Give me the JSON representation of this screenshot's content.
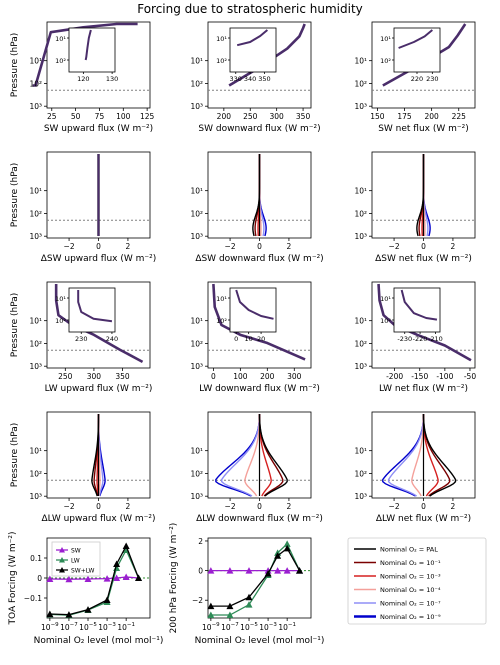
{
  "title": "Forcing due to stratospheric humidity",
  "colors": {
    "line_colors": [
      "#000000",
      "#7a0000",
      "#d62020",
      "#f4a09a",
      "#8f8ff5",
      "#0000cc"
    ],
    "blend": "#4a2d6a",
    "sw": "#9b1fd0",
    "lw": "#2e8b57",
    "swlw": "#000000",
    "refline": "#808080"
  },
  "legend": {
    "entries": [
      "Nominal O₂ = PAL",
      "Nominal O₂ = 10⁻¹",
      "Nominal O₂ = 10⁻³",
      "Nominal O₂ = 10⁻⁴",
      "Nominal O₂ = 10⁻⁷",
      "Nominal O₂ = 10⁻⁹"
    ]
  },
  "chart_data": [
    {
      "id": "sw_up",
      "type": "line",
      "xlabel": "SW upward flux (W m⁻²)",
      "ylabel": "Pressure (hPa)",
      "xlim": [
        20,
        128
      ],
      "xticks": [
        25,
        50,
        75,
        100,
        125
      ],
      "ylim": [
        1200,
        0.2
      ],
      "yscale": "log",
      "refline_y": 200,
      "profile": [
        [
          5,
          0.25
        ],
        [
          8,
          0.25
        ],
        [
          24,
          0.9
        ],
        [
          58,
          0.96
        ],
        [
          93,
          1.0
        ],
        [
          115,
          1.0
        ]
      ],
      "inset": {
        "xlim": [
          115,
          131
        ],
        "xticks": [
          120,
          130
        ],
        "yticks": [
          "10¹",
          "10²"
        ],
        "ylim": [
          200,
          0.2
        ],
        "profile": [
          [
            120.8,
            0.25
          ],
          [
            121,
            0.32
          ],
          [
            121.4,
            0.55
          ],
          [
            121.9,
            0.8
          ],
          [
            122.6,
            1.0
          ]
        ]
      }
    },
    {
      "id": "sw_down",
      "type": "line",
      "xlabel": "SW downward flux (W m⁻²)",
      "ylabel": "",
      "xlim": [
        170,
        365
      ],
      "xticks": [
        200,
        250,
        300,
        350
      ],
      "ylim": [
        1200,
        0.2
      ],
      "yscale": "log",
      "refline_y": 200,
      "profile": [
        [
          210,
          0.25
        ],
        [
          262,
          0.45
        ],
        [
          320,
          0.7
        ],
        [
          343,
          0.85
        ],
        [
          350,
          0.95
        ],
        [
          353,
          1.0
        ]
      ],
      "inset": {
        "xlim": [
          326,
          358
        ],
        "xticks": [
          330,
          340,
          350
        ],
        "yticks": [
          "10¹",
          "10²"
        ],
        "ylim": [
          200,
          0.2
        ],
        "profile": [
          [
            331,
            0.62
          ],
          [
            340,
            0.7
          ],
          [
            347,
            0.85
          ],
          [
            352,
            1.0
          ]
        ]
      }
    },
    {
      "id": "sw_net",
      "type": "line",
      "xlabel": "SW net flux (W m⁻²)",
      "ylabel": "",
      "xlim": [
        145,
        240
      ],
      "xticks": [
        150,
        175,
        200,
        225
      ],
      "ylim": [
        1200,
        0.2
      ],
      "yscale": "log",
      "refline_y": 200,
      "profile": [
        [
          155,
          0.25
        ],
        [
          182,
          0.45
        ],
        [
          201,
          0.6
        ],
        [
          216,
          0.72
        ],
        [
          224,
          0.86
        ],
        [
          231,
          1.0
        ]
      ],
      "inset": {
        "xlim": [
          205,
          235
        ],
        "xticks": [
          220,
          230
        ],
        "yticks": [
          "10¹",
          "10²"
        ],
        "ylim": [
          200,
          0.2
        ],
        "profile": [
          [
            208,
            0.55
          ],
          [
            218,
            0.7
          ],
          [
            225,
            0.84
          ],
          [
            230,
            1.0
          ]
        ]
      }
    },
    {
      "id": "dsw_up",
      "type": "line",
      "xlabel": "ΔSW upward flux (W m⁻²)",
      "ylabel": "Pressure (hPa)",
      "xlim": [
        -3.5,
        3.5
      ],
      "xticks": [
        -2,
        0,
        2
      ],
      "ylim": [
        1200,
        0.2
      ],
      "yscale": "log",
      "refline_y": 200
    },
    {
      "id": "dsw_down",
      "type": "line",
      "xlabel": "ΔSW downward flux (W m⁻²)",
      "ylabel": "",
      "xlim": [
        -3.5,
        3.5
      ],
      "xticks": [
        -2,
        0,
        2
      ],
      "ylim": [
        1200,
        0.2
      ],
      "yscale": "log",
      "refline_y": 200
    },
    {
      "id": "dsw_net",
      "type": "line",
      "xlabel": "ΔSW net flux (W m⁻²)",
      "ylabel": "",
      "xlim": [
        -3.5,
        3.5
      ],
      "xticks": [
        -2,
        0,
        2
      ],
      "ylim": [
        1200,
        0.2
      ],
      "yscale": "log",
      "refline_y": 200
    },
    {
      "id": "lw_up",
      "type": "line",
      "xlabel": "LW upward flux (W m⁻²)",
      "ylabel": "Pressure (hPa)",
      "xlim": [
        218,
        398
      ],
      "xticks": [
        250,
        300,
        350
      ],
      "ylim": [
        1200,
        0.2
      ],
      "yscale": "log",
      "refline_y": 200,
      "profile": [
        [
          234,
          1.0
        ],
        [
          234,
          0.8
        ],
        [
          238,
          0.62
        ],
        [
          262,
          0.5
        ],
        [
          300,
          0.38
        ],
        [
          345,
          0.2
        ],
        [
          385,
          0.05
        ]
      ],
      "inset": {
        "xlim": [
          226,
          241
        ],
        "xticks": [
          230,
          240
        ],
        "yticks": [
          "10¹",
          "10²"
        ],
        "ylim": [
          200,
          0.2
        ],
        "profile": [
          [
            229,
            1.0
          ],
          [
            229,
            0.7
          ],
          [
            230,
            0.45
          ],
          [
            234,
            0.28
          ],
          [
            240,
            0.22
          ]
        ]
      }
    },
    {
      "id": "lw_down",
      "type": "line",
      "xlabel": "LW downward flux (W m⁻²)",
      "ylabel": "",
      "xlim": [
        -20,
        362
      ],
      "xticks": [
        0,
        100,
        200,
        300
      ],
      "ylim": [
        1200,
        0.2
      ],
      "yscale": "log",
      "refline_y": 200,
      "profile": [
        [
          0,
          1.0
        ],
        [
          5,
          0.72
        ],
        [
          30,
          0.5
        ],
        [
          100,
          0.38
        ],
        [
          200,
          0.28
        ],
        [
          340,
          0.08
        ]
      ],
      "inset": {
        "xlim": [
          -5,
          32
        ],
        "xticks": [
          0,
          10,
          20
        ],
        "yticks": [
          "10¹",
          "10²"
        ],
        "ylim": [
          200,
          0.2
        ],
        "profile": [
          [
            0,
            1.0
          ],
          [
            3,
            0.7
          ],
          [
            10,
            0.5
          ],
          [
            20,
            0.35
          ],
          [
            30,
            0.28
          ]
        ]
      }
    },
    {
      "id": "lw_net",
      "type": "line",
      "xlabel": "LW net flux (W m⁻²)",
      "ylabel": "",
      "xlim": [
        -245,
        -40
      ],
      "xticks": [
        -200,
        -150,
        -100,
        -50
      ],
      "ylim": [
        1200,
        0.2
      ],
      "yscale": "log",
      "refline_y": 200,
      "profile": [
        [
          -232,
          1.0
        ],
        [
          -230,
          0.8
        ],
        [
          -222,
          0.62
        ],
        [
          -200,
          0.5
        ],
        [
          -155,
          0.38
        ],
        [
          -100,
          0.25
        ],
        [
          -48,
          0.07
        ]
      ],
      "inset": {
        "xlim": [
          -237,
          -207
        ],
        "xticks": [
          -230,
          -220,
          -210
        ],
        "yticks": [
          "10¹",
          "10²"
        ],
        "ylim": [
          200,
          0.2
        ],
        "profile": [
          [
            -232,
            1.0
          ],
          [
            -230,
            0.7
          ],
          [
            -224,
            0.42
          ],
          [
            -216,
            0.3
          ],
          [
            -209,
            0.26
          ]
        ]
      }
    },
    {
      "id": "dlw_up",
      "type": "line",
      "xlabel": "ΔLW upward flux (W m⁻²)",
      "ylabel": "Pressure (hPa)",
      "xlim": [
        -3.5,
        3.5
      ],
      "xticks": [
        -2,
        0,
        2
      ],
      "ylim": [
        1200,
        0.2
      ],
      "yscale": "log",
      "refline_y": 200
    },
    {
      "id": "dlw_down",
      "type": "line",
      "xlabel": "ΔLW downward flux (W m⁻²)",
      "ylabel": "",
      "xlim": [
        -3.5,
        3.5
      ],
      "xticks": [
        -2,
        0,
        2
      ],
      "ylim": [
        1200,
        0.2
      ],
      "yscale": "log",
      "refline_y": 200
    },
    {
      "id": "dlw_net",
      "type": "line",
      "xlabel": "ΔLW net flux (W m⁻²)",
      "ylabel": "",
      "xlim": [
        -3.5,
        3.5
      ],
      "xticks": [
        -2,
        0,
        2
      ],
      "ylim": [
        1200,
        0.2
      ],
      "yscale": "log",
      "refline_y": 200
    },
    {
      "id": "toa",
      "type": "line",
      "xlabel": "Nominal O₂ level (mol mol⁻¹)",
      "ylabel": "TOA Forcing (W m⁻²)",
      "xscale": "log",
      "xlim": [
        -9.3,
        1.5
      ],
      "xticks": [
        -9,
        -7,
        -5,
        -3,
        -1
      ],
      "ylim": [
        -0.2,
        0.2
      ],
      "yticks": [
        -0.1,
        0.0,
        0.1
      ],
      "legend": [
        "SW",
        "LW",
        "SW+LW"
      ],
      "x": [
        -9,
        -7,
        -5,
        -3,
        -2,
        -1,
        0.3
      ],
      "series": [
        {
          "name": "SW",
          "values": [
            -0.005,
            -0.006,
            -0.005,
            -0.003,
            0.0,
            0.005,
            0.0
          ]
        },
        {
          "name": "LW",
          "values": [
            -0.182,
            -0.186,
            -0.16,
            -0.12,
            0.05,
            0.14,
            0.0
          ]
        },
        {
          "name": "SW+LW",
          "values": [
            -0.18,
            -0.183,
            -0.158,
            -0.11,
            0.07,
            0.16,
            0.0
          ]
        }
      ]
    },
    {
      "id": "f200",
      "type": "line",
      "xlabel": "Nominal O₂ level (mol mol⁻¹)",
      "ylabel": "200 hPa Forcing (W m⁻²)",
      "xscale": "log",
      "xlim": [
        -9.3,
        1.5
      ],
      "xticks": [
        -9,
        -7,
        -5,
        -3,
        -1
      ],
      "ylim": [
        -3.2,
        2.2
      ],
      "yticks": [
        -2,
        0,
        2
      ],
      "x": [
        -9,
        -7,
        -5,
        -3,
        -2,
        -1,
        0.3
      ],
      "series": [
        {
          "name": "SW",
          "values": [
            0.0,
            0.0,
            0.0,
            0.0,
            0.0,
            0.0,
            0.0
          ]
        },
        {
          "name": "LW",
          "values": [
            -3.0,
            -3.0,
            -2.3,
            -0.3,
            1.2,
            1.8,
            0.0
          ]
        },
        {
          "name": "SW+LW",
          "values": [
            -2.4,
            -2.4,
            -1.8,
            -0.2,
            1.0,
            1.5,
            0.0
          ]
        }
      ]
    }
  ]
}
